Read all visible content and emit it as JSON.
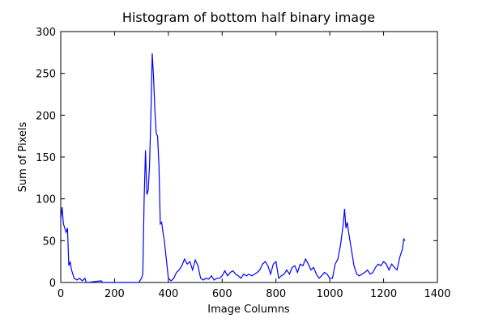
{
  "chart_data": {
    "type": "line",
    "title": "Histogram of bottom half binary image",
    "x_label": "Image Columns",
    "y_label": "Sum of Pixels",
    "series": [
      {
        "color": "#0000ff",
        "x": [
          0,
          5,
          10,
          15,
          20,
          25,
          30,
          35,
          40,
          50,
          60,
          70,
          80,
          90,
          95,
          100,
          150,
          155,
          200,
          250,
          290,
          300,
          305,
          310,
          315,
          320,
          325,
          330,
          335,
          340,
          345,
          350,
          355,
          360,
          365,
          370,
          375,
          380,
          385,
          390,
          395,
          400,
          410,
          420,
          430,
          440,
          450,
          460,
          470,
          480,
          490,
          500,
          510,
          520,
          530,
          540,
          550,
          560,
          570,
          580,
          590,
          600,
          610,
          620,
          630,
          640,
          650,
          660,
          670,
          680,
          690,
          700,
          710,
          720,
          730,
          740,
          750,
          760,
          770,
          780,
          790,
          800,
          810,
          820,
          830,
          840,
          850,
          860,
          870,
          880,
          890,
          900,
          910,
          920,
          930,
          940,
          950,
          960,
          970,
          980,
          990,
          1000,
          1010,
          1020,
          1030,
          1040,
          1050,
          1055,
          1060,
          1065,
          1070,
          1080,
          1090,
          1100,
          1110,
          1120,
          1130,
          1140,
          1150,
          1160,
          1170,
          1180,
          1190,
          1200,
          1210,
          1220,
          1230,
          1240,
          1250,
          1260,
          1270,
          1275,
          1280
        ],
        "values": [
          75,
          90,
          70,
          65,
          60,
          65,
          20,
          25,
          15,
          5,
          3,
          5,
          2,
          5,
          0,
          0,
          2,
          0,
          0,
          0,
          0,
          5,
          10,
          100,
          158,
          105,
          110,
          140,
          200,
          274,
          245,
          205,
          178,
          175,
          140,
          70,
          72,
          60,
          50,
          35,
          20,
          5,
          2,
          5,
          12,
          15,
          20,
          28,
          22,
          25,
          15,
          27,
          20,
          5,
          3,
          5,
          4,
          8,
          3,
          5,
          5,
          8,
          14,
          8,
          12,
          14,
          10,
          8,
          5,
          10,
          8,
          10,
          8,
          10,
          12,
          15,
          22,
          25,
          20,
          10,
          22,
          25,
          5,
          8,
          10,
          15,
          10,
          18,
          20,
          12,
          22,
          20,
          28,
          22,
          15,
          18,
          10,
          5,
          8,
          12,
          10,
          5,
          5,
          22,
          28,
          45,
          70,
          88,
          65,
          72,
          60,
          40,
          20,
          10,
          8,
          10,
          12,
          15,
          10,
          12,
          18,
          22,
          20,
          25,
          22,
          15,
          22,
          18,
          15,
          30,
          40,
          52,
          50
        ]
      }
    ],
    "xlim": [
      0,
      1400
    ],
    "xticks": [
      0,
      200,
      400,
      600,
      800,
      1000,
      1200,
      1400
    ],
    "ylim": [
      0,
      300
    ],
    "yticks": [
      0,
      50,
      100,
      150,
      200,
      250,
      300
    ]
  }
}
